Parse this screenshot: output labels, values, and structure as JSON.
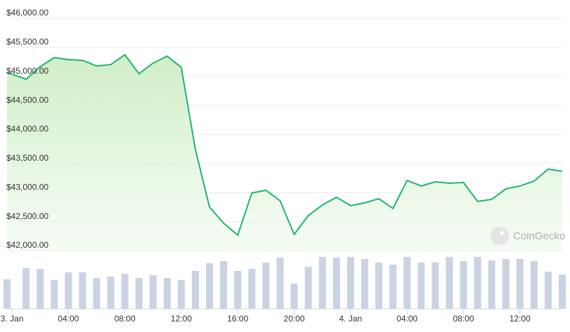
{
  "chart_data": {
    "type": "line",
    "x": [
      -0.35,
      1,
      2,
      3,
      4,
      5,
      6,
      7,
      8,
      9,
      10,
      11,
      12,
      13,
      14,
      15,
      16,
      17,
      18,
      19,
      20,
      21,
      22,
      23,
      24,
      25,
      26,
      27,
      28,
      29,
      30,
      31,
      32,
      33,
      34,
      35,
      36,
      37,
      38,
      39
    ],
    "xlim": [
      -0.35,
      39
    ],
    "xticks": [
      {
        "value": 0,
        "label": "3. Jan"
      },
      {
        "value": 4,
        "label": "04:00"
      },
      {
        "value": 8,
        "label": "08:00"
      },
      {
        "value": 12,
        "label": "12:00"
      },
      {
        "value": 16,
        "label": "16:00"
      },
      {
        "value": 20,
        "label": "20:00"
      },
      {
        "value": 24,
        "label": "4. Jan"
      },
      {
        "value": 28,
        "label": "04:00"
      },
      {
        "value": 32,
        "label": "08:00"
      },
      {
        "value": 36,
        "label": "12:00"
      }
    ],
    "ylim": [
      42000,
      46000
    ],
    "yticks": [
      {
        "value": 42000,
        "label": "$42,000.00"
      },
      {
        "value": 42500,
        "label": "$42,500.00"
      },
      {
        "value": 43000,
        "label": "$43,000.00"
      },
      {
        "value": 43500,
        "label": "$43,500.00"
      },
      {
        "value": 44000,
        "label": "$44,000.00"
      },
      {
        "value": 44500,
        "label": "$44,500.00"
      },
      {
        "value": 45000,
        "label": "$45,000.00"
      },
      {
        "value": 45500,
        "label": "$45,500.00"
      },
      {
        "value": 46000,
        "label": "$46,000.00"
      }
    ],
    "y2lim": [
      0,
      80
    ],
    "grid": true,
    "series": [
      {
        "type": "area",
        "color": "#1fb570",
        "values": [
          45069,
          44949,
          45166,
          45323,
          45287,
          45275,
          45178,
          45202,
          45372,
          45045,
          45227,
          45347,
          45154,
          43740,
          42749,
          42471,
          42266,
          42991,
          43039,
          42858,
          42278,
          42604,
          42785,
          42918,
          42773,
          42822,
          42894,
          42725,
          43208,
          43112,
          43184,
          43160,
          43172,
          42846,
          42882,
          43063,
          43112,
          43196,
          43402,
          43366
        ]
      },
      {
        "type": "bar",
        "axis": "y2",
        "color": "#cad3e2",
        "values": [
          42,
          58,
          57,
          41,
          52,
          52,
          44,
          46,
          50,
          44,
          48,
          44,
          41,
          54,
          65,
          68,
          54,
          57,
          66,
          73,
          36,
          60,
          74,
          73,
          74,
          71,
          66,
          63,
          74,
          66,
          66,
          74,
          68,
          74,
          69,
          71,
          71,
          68,
          53,
          49
        ]
      }
    ],
    "watermark": "CoinGecko"
  }
}
